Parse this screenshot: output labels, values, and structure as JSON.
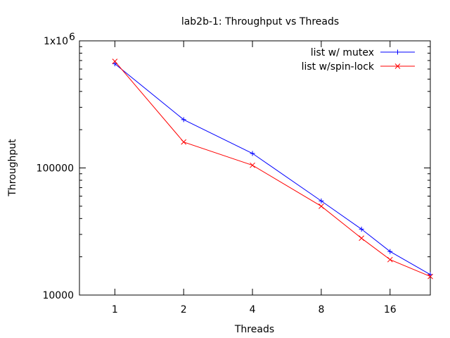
{
  "chart_data": {
    "type": "line",
    "title": "lab2b-1: Throughput vs Threads",
    "xlabel": "Threads",
    "ylabel": "Throughput",
    "x_scale": "log2",
    "y_scale": "log10",
    "xlim": [
      0.7,
      24
    ],
    "ylim": [
      10000,
      1000000
    ],
    "x_ticks": [
      1,
      2,
      4,
      8,
      16
    ],
    "x_tick_labels": [
      "1",
      "2",
      "4",
      "8",
      "16"
    ],
    "y_ticks": [
      10000,
      100000,
      1000000
    ],
    "y_tick_labels": [
      "10000",
      "100000",
      "1x10"
    ],
    "y_tick_label_superscript": "6",
    "grid": false,
    "legend_position": "top-right",
    "series": [
      {
        "name": "list w/ mutex",
        "color": "#0000ff",
        "marker": "plus",
        "x": [
          1,
          2,
          4,
          8,
          12,
          16,
          24
        ],
        "y": [
          660000,
          240000,
          130000,
          55000,
          33000,
          22000,
          14500
        ]
      },
      {
        "name": "list w/spin-lock",
        "color": "#ff0000",
        "marker": "cross",
        "x": [
          1,
          2,
          4,
          8,
          12,
          16,
          24
        ],
        "y": [
          690000,
          160000,
          105000,
          50000,
          28000,
          19000,
          14000
        ]
      }
    ]
  }
}
